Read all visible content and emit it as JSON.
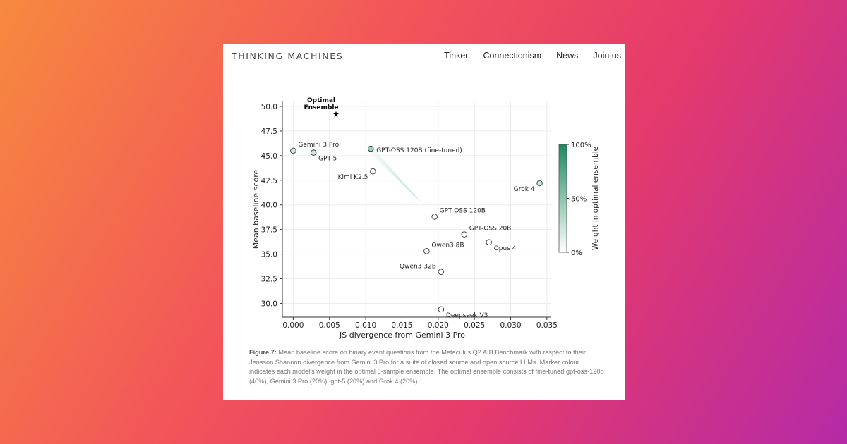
{
  "header": {
    "logo": "THINKING MACHINES",
    "nav": [
      "Tinker",
      "Connectionism",
      "News",
      "Join us"
    ]
  },
  "caption": {
    "label": "Figure 7:",
    "text": "Mean baseline score on binary event questions from the Metaculus Q2 AIB Benchmark with respect to their Jensson Shannon divergence from Gemini 3 Pro for a suite of closed source and open source LLMs. Marker colour indicates each model's weight in the optimal 5-sample ensemble. The optimal ensemble consists of fine-tuned gpt-oss-120b (40%), Gemini 3 Pro (20%), gpt-5 (20%) and Grok 4 (20%)."
  },
  "colors": {
    "marker_max": "#1a8a5e",
    "marker_min": "#ffffff"
  },
  "chart_data": {
    "type": "scatter",
    "xlabel": "JS divergence from Gemini 3 Pro",
    "ylabel": "Mean baseline score",
    "xlim": [
      -0.0015,
      0.0355
    ],
    "ylim": [
      28.6,
      50.5
    ],
    "xticks": [
      0.0,
      0.005,
      0.01,
      0.015,
      0.02,
      0.025,
      0.03,
      0.035
    ],
    "xtick_labels": [
      "0.000",
      "0.005",
      "0.010",
      "0.015",
      "0.020",
      "0.025",
      "0.030",
      "0.035"
    ],
    "yticks": [
      30.0,
      32.5,
      35.0,
      37.5,
      40.0,
      42.5,
      45.0,
      47.5,
      50.0
    ],
    "ytick_labels": [
      "30.0",
      "32.5",
      "35.0",
      "37.5",
      "40.0",
      "42.5",
      "45.0",
      "47.5",
      "50.0"
    ],
    "grid": true,
    "points": [
      {
        "name": "Gemini 3 Pro",
        "x": 0.0,
        "y": 45.5,
        "weight": 0.2,
        "label_pos": "above-right"
      },
      {
        "name": "GPT-5",
        "x": 0.0028,
        "y": 45.3,
        "weight": 0.2,
        "label_pos": "below-right"
      },
      {
        "name": "GPT-OSS 120B (fine-tuned)",
        "x": 0.0107,
        "y": 45.7,
        "weight": 0.4,
        "label_pos": "right"
      },
      {
        "name": "Kimi K2.5",
        "x": 0.011,
        "y": 43.4,
        "weight": 0.0,
        "label_pos": "below-left"
      },
      {
        "name": "Grok 4",
        "x": 0.034,
        "y": 42.2,
        "weight": 0.2,
        "label_pos": "below-left"
      },
      {
        "name": "GPT-OSS 120B",
        "x": 0.0195,
        "y": 38.8,
        "weight": 0.0,
        "label_pos": "above-right"
      },
      {
        "name": "GPT-OSS 20B",
        "x": 0.0236,
        "y": 37.0,
        "weight": 0.0,
        "label_pos": "above-right"
      },
      {
        "name": "Opus 4",
        "x": 0.027,
        "y": 36.2,
        "weight": 0.0,
        "label_pos": "below-right"
      },
      {
        "name": "Qwen3 8B",
        "x": 0.0184,
        "y": 35.3,
        "weight": 0.0,
        "label_pos": "above-right"
      },
      {
        "name": "Qwen3 32B",
        "x": 0.0204,
        "y": 33.2,
        "weight": 0.0,
        "label_pos": "above-left"
      },
      {
        "name": "Deepseek V3",
        "x": 0.0204,
        "y": 29.4,
        "weight": 0.0,
        "label_pos": "below-right"
      }
    ],
    "optimal": {
      "name": "Optimal\nEnsemble",
      "x": 0.0059,
      "y": 49.2
    },
    "arrow": {
      "from": [
        0.0177,
        40.2
      ],
      "to": [
        0.0107,
        45.7
      ]
    },
    "colorbar": {
      "label": "Weight in optimal ensemble",
      "ticks": [
        "100%",
        "50%",
        "0%"
      ]
    }
  }
}
